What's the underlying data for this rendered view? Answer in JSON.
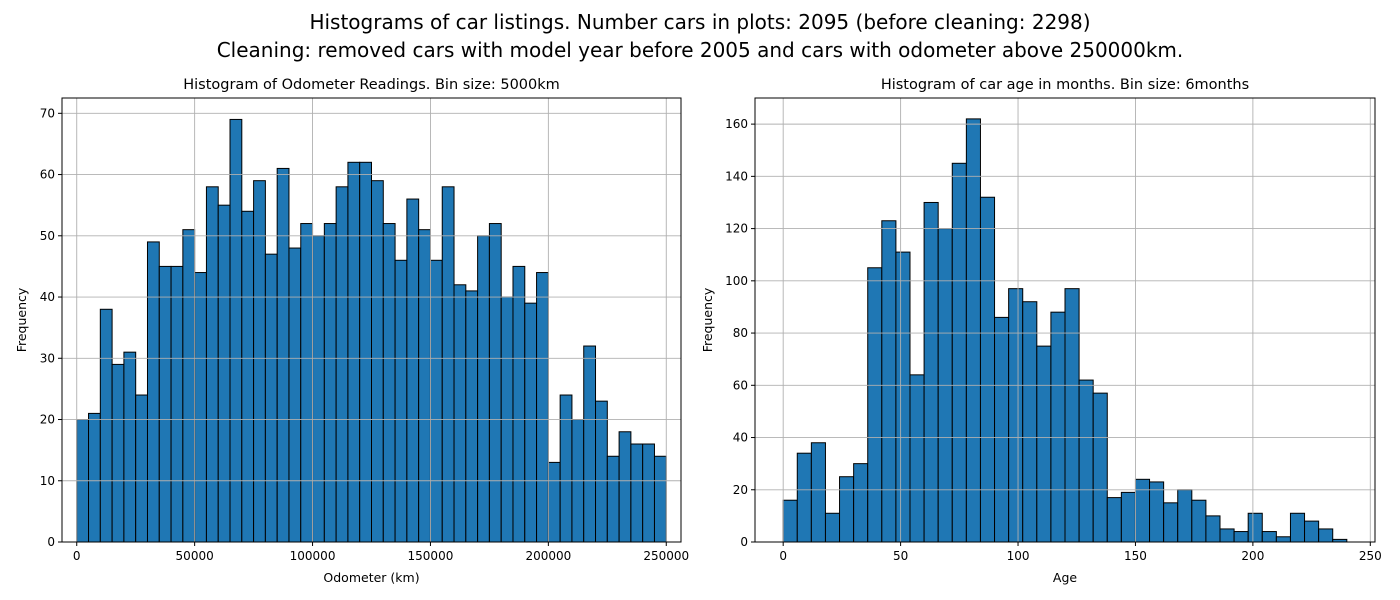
{
  "figure": {
    "suptitle_line1": "Histograms of car listings. Number cars in plots: 2095 (before cleaning: 2298)",
    "suptitle_line2": "Cleaning: removed cars with model year before 2005 and cars with odometer above 250000km."
  },
  "colors": {
    "bar_fill": "#1f77b4",
    "bar_edge": "#000000",
    "grid": "#b0b0b0"
  },
  "chart_data": [
    {
      "type": "bar",
      "title": "Histogram of Odometer Readings. Bin size: 5000km",
      "xlabel": "Odometer (km)",
      "ylabel": "Frequency",
      "xlim": [
        -6250,
        256250
      ],
      "ylim": [
        0,
        72.5
      ],
      "xticks": [
        0,
        50000,
        100000,
        150000,
        200000,
        250000
      ],
      "yticks": [
        0,
        10,
        20,
        30,
        40,
        50,
        60,
        70
      ],
      "grid": true,
      "bin_start": 0,
      "bin_width": 5000,
      "values": [
        20,
        21,
        38,
        29,
        31,
        24,
        49,
        45,
        45,
        51,
        44,
        58,
        55,
        69,
        54,
        59,
        47,
        61,
        48,
        52,
        50,
        52,
        58,
        62,
        62,
        59,
        52,
        46,
        56,
        51,
        46,
        58,
        42,
        41,
        50,
        52,
        40,
        45,
        39,
        44,
        13,
        24,
        20,
        32,
        23,
        14,
        18,
        16,
        16,
        14
      ]
    },
    {
      "type": "bar",
      "title": "Histogram of car age in months. Bin size: 6months",
      "xlabel": "Age",
      "ylabel": "Frequency",
      "xlim": [
        -12,
        252
      ],
      "ylim": [
        0,
        170
      ],
      "xticks": [
        0,
        50,
        100,
        150,
        200,
        250
      ],
      "yticks": [
        0,
        20,
        40,
        60,
        80,
        100,
        120,
        140,
        160
      ],
      "grid": true,
      "bin_start": 0,
      "bin_width": 6,
      "values": [
        16,
        34,
        38,
        11,
        25,
        30,
        105,
        123,
        111,
        64,
        130,
        120,
        145,
        162,
        132,
        86,
        97,
        92,
        75,
        88,
        97,
        62,
        57,
        17,
        19,
        24,
        23,
        15,
        20,
        16,
        10,
        5,
        4,
        11,
        4,
        2,
        11,
        8,
        5,
        1
      ]
    }
  ]
}
